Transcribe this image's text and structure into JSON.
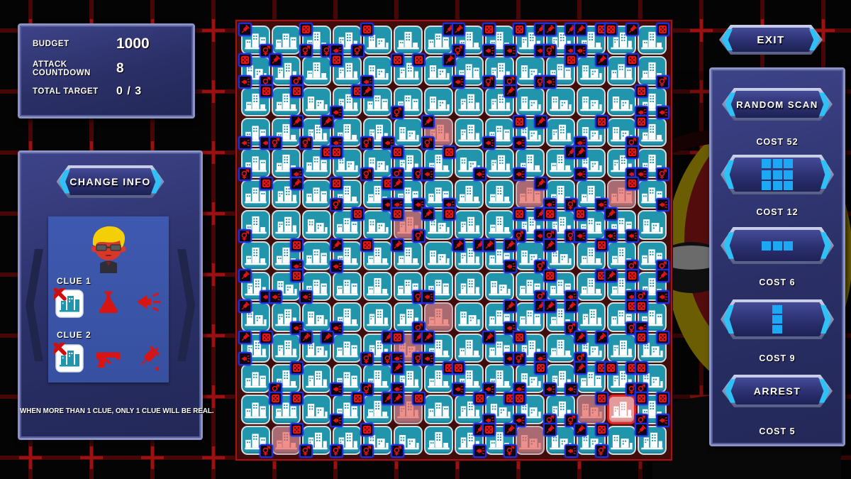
{
  "hud": {
    "rows": [
      {
        "label": "BUDGET",
        "value": "1000"
      },
      {
        "label": "ATTACK COUNTDOWN",
        "value": "8"
      },
      {
        "label": "TOTAL TARGET",
        "value": "0 / 3"
      }
    ]
  },
  "clue_panel": {
    "button": "CHANGE INFO",
    "clues": [
      {
        "label": "CLUE 1",
        "icons": [
          "building-excluded",
          "flask",
          "megaphone"
        ]
      },
      {
        "label": "CLUE 2",
        "icons": [
          "building-excluded",
          "gun",
          "syringe"
        ]
      }
    ],
    "note": "WHEN MORE THAN 1 CLUE, ONLY 1 CLUE WILL BE REAL."
  },
  "right_panel": {
    "exit": "EXIT",
    "random_scan": "RANDOM SCAN",
    "random_scan_cost": "COST 52",
    "scan_3x3_cost": "COST 12",
    "scan_row_cost": "COST 6",
    "scan_col_cost": "COST 9",
    "arrest": "ARREST",
    "arrest_cost": "COST 5"
  },
  "board": {
    "rows": 14,
    "cols": 14,
    "tile_color": "#2095ac",
    "scanned_color": "#a96a72",
    "selected_border_color": "#e02525",
    "badge_icons": [
      "dice",
      "syringe",
      "megaphone",
      "gender-symbol"
    ],
    "badge_rule": {
      "top_corners": [
        "dice",
        "syringe"
      ],
      "bottom_corners": [
        "megaphone",
        "gender-symbol"
      ]
    },
    "scanned_tiles": [
      [
        3,
        6
      ],
      [
        5,
        9
      ],
      [
        5,
        12
      ],
      [
        6,
        5
      ],
      [
        9,
        6
      ],
      [
        10,
        5
      ],
      [
        12,
        5
      ],
      [
        12,
        11
      ],
      [
        13,
        1
      ],
      [
        13,
        9
      ]
    ],
    "selected_tile": [
      12,
      12
    ]
  },
  "colors": {
    "accent_cyan": "#2fc0f5",
    "panel_blue": "#2a2f66",
    "badge_red": "#e51414",
    "grid_red": "#a01010"
  }
}
